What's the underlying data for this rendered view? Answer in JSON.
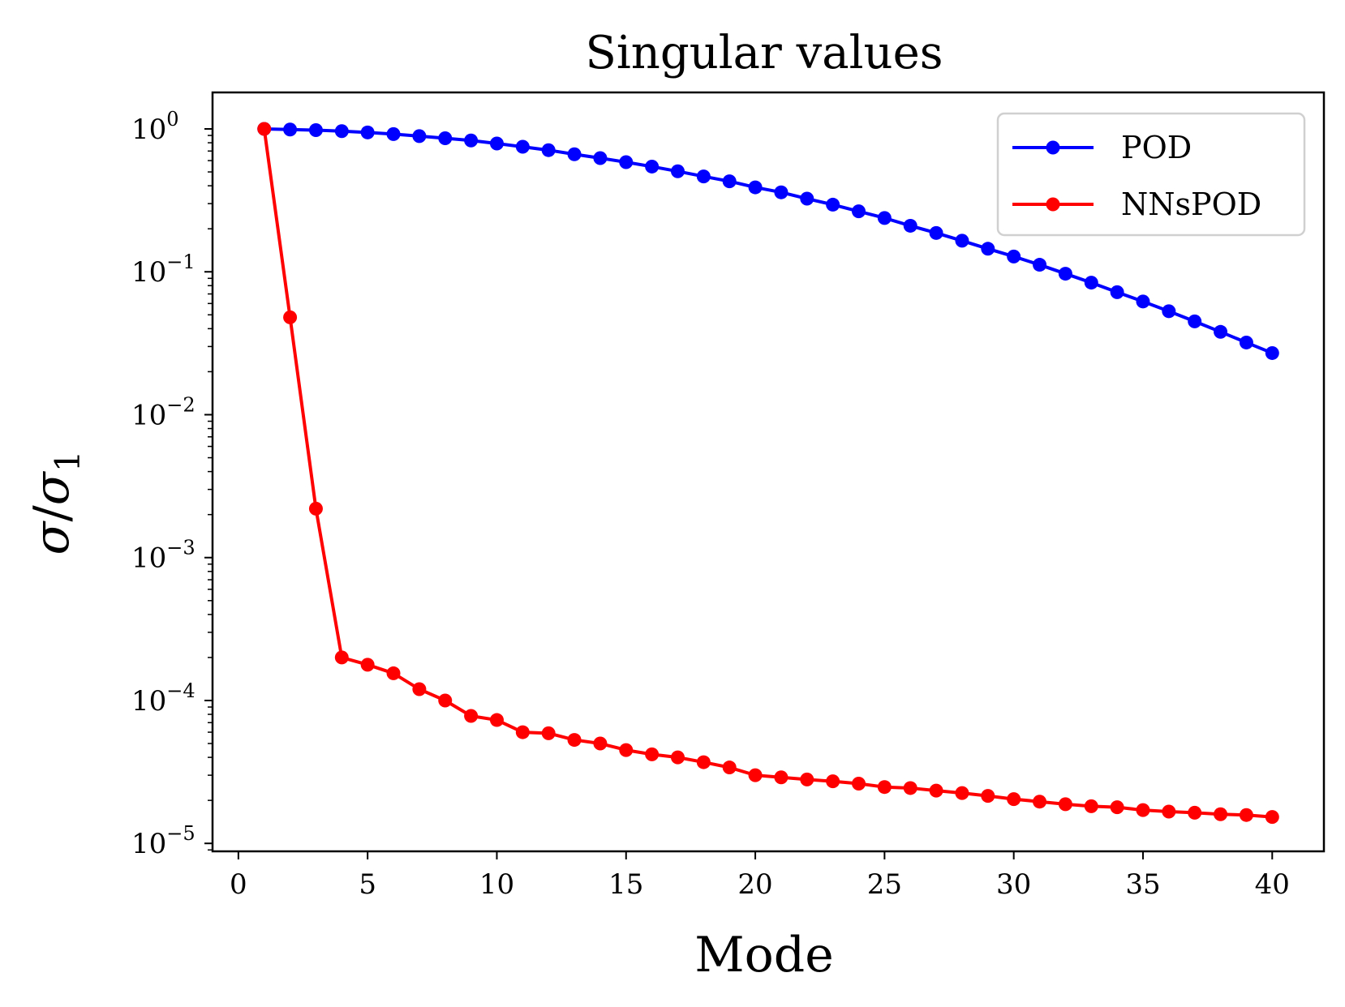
{
  "chart_data": {
    "type": "line",
    "title": "Singular values",
    "xlabel": "Mode",
    "ylabel": {
      "base": "σ",
      "divider": "/",
      "sub_base": "σ",
      "sub": "1"
    },
    "yscale": "log",
    "xlim": [
      -1,
      42
    ],
    "ylim": [
      8.8e-06,
      1.8
    ],
    "xticks": [
      0,
      5,
      10,
      15,
      20,
      25,
      30,
      35,
      40
    ],
    "yticks": [
      {
        "value": 1,
        "base": "10",
        "exp": "0"
      },
      {
        "value": 0.1,
        "base": "10",
        "exp": "−1"
      },
      {
        "value": 0.01,
        "base": "10",
        "exp": "−2"
      },
      {
        "value": 0.001,
        "base": "10",
        "exp": "−3"
      },
      {
        "value": 0.0001,
        "base": "10",
        "exp": "−4"
      },
      {
        "value": 1e-05,
        "base": "10",
        "exp": "−5"
      }
    ],
    "legend_position": "top-right",
    "x": [
      1,
      2,
      3,
      4,
      5,
      6,
      7,
      8,
      9,
      10,
      11,
      12,
      13,
      14,
      15,
      16,
      17,
      18,
      19,
      20,
      21,
      22,
      23,
      24,
      25,
      26,
      27,
      28,
      29,
      30,
      31,
      32,
      33,
      34,
      35,
      36,
      37,
      38,
      39,
      40
    ],
    "series": [
      {
        "name": "POD",
        "color": "#0000ff",
        "values": [
          1.0,
          0.99,
          0.98,
          0.965,
          0.945,
          0.92,
          0.89,
          0.86,
          0.83,
          0.79,
          0.75,
          0.71,
          0.665,
          0.625,
          0.585,
          0.545,
          0.505,
          0.465,
          0.43,
          0.39,
          0.36,
          0.325,
          0.295,
          0.265,
          0.238,
          0.21,
          0.187,
          0.165,
          0.145,
          0.128,
          0.112,
          0.097,
          0.084,
          0.072,
          0.062,
          0.053,
          0.045,
          0.038,
          0.032,
          0.027
        ]
      },
      {
        "name": "NNsPOD",
        "color": "#ff0000",
        "values": [
          1.0,
          0.048,
          0.0022,
          0.0002,
          0.000178,
          0.000155,
          0.00012,
          0.0001,
          7.8e-05,
          7.3e-05,
          6e-05,
          5.9e-05,
          5.3e-05,
          5e-05,
          4.5e-05,
          4.2e-05,
          4e-05,
          3.7e-05,
          3.4e-05,
          3e-05,
          2.9e-05,
          2.8e-05,
          2.72e-05,
          2.62e-05,
          2.48e-05,
          2.44e-05,
          2.34e-05,
          2.25e-05,
          2.15e-05,
          2.04e-05,
          1.96e-05,
          1.88e-05,
          1.82e-05,
          1.79e-05,
          1.71e-05,
          1.67e-05,
          1.64e-05,
          1.6e-05,
          1.58e-05,
          1.53e-05
        ]
      }
    ]
  }
}
